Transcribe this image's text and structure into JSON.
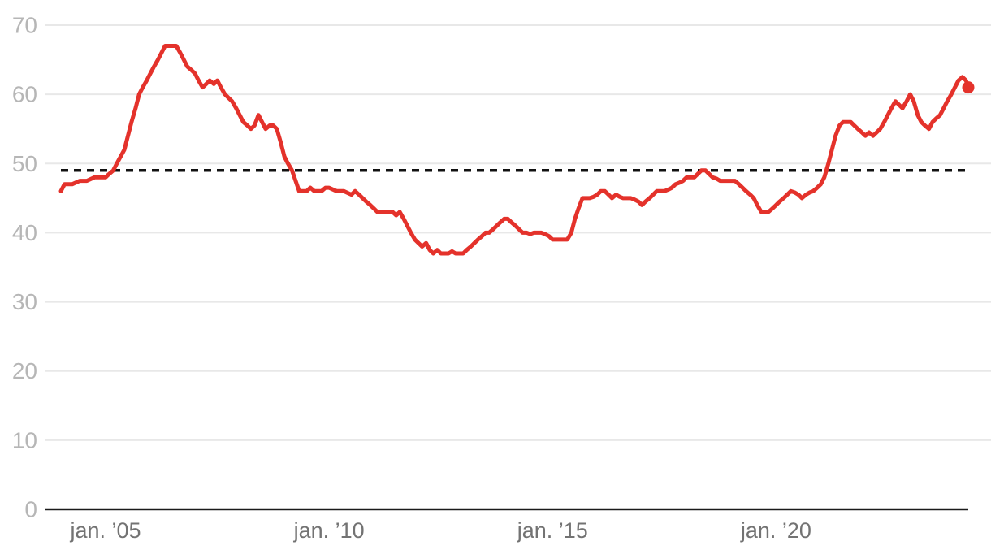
{
  "chart_data": {
    "type": "line",
    "title": "",
    "xlabel": "",
    "ylabel": "",
    "xlim": [
      2004.0,
      2024.3
    ],
    "ylim": [
      0,
      70
    ],
    "grid": "horizontal",
    "y_ticks": [
      {
        "value": 0,
        "label": "0"
      },
      {
        "value": 10,
        "label": "10"
      },
      {
        "value": 20,
        "label": "20"
      },
      {
        "value": 30,
        "label": "30"
      },
      {
        "value": 40,
        "label": "40"
      },
      {
        "value": 50,
        "label": "50"
      },
      {
        "value": 60,
        "label": "60"
      },
      {
        "value": 70,
        "label": "70"
      }
    ],
    "x_ticks": [
      {
        "value": 2005,
        "label": "jan. ’05"
      },
      {
        "value": 2010,
        "label": "jan. ’10"
      },
      {
        "value": 2015,
        "label": "jan. ’15"
      },
      {
        "value": 2020,
        "label": "jan. ’20"
      }
    ],
    "reference_line": {
      "value": 49,
      "style": "dashed",
      "color": "#111111"
    },
    "series": [
      {
        "name": "main-series",
        "color": "#e4322b",
        "end_dot": true,
        "points": [
          [
            2004.0,
            46
          ],
          [
            2004.08,
            47
          ],
          [
            2004.25,
            47
          ],
          [
            2004.42,
            47.5
          ],
          [
            2004.58,
            47.5
          ],
          [
            2004.75,
            48
          ],
          [
            2004.92,
            48
          ],
          [
            2005.0,
            48
          ],
          [
            2005.08,
            48.5
          ],
          [
            2005.17,
            49
          ],
          [
            2005.25,
            50
          ],
          [
            2005.42,
            52
          ],
          [
            2005.5,
            54
          ],
          [
            2005.58,
            56
          ],
          [
            2005.67,
            58
          ],
          [
            2005.75,
            60
          ],
          [
            2005.83,
            61
          ],
          [
            2005.92,
            62
          ],
          [
            2006.0,
            63
          ],
          [
            2006.08,
            64
          ],
          [
            2006.17,
            65
          ],
          [
            2006.25,
            66
          ],
          [
            2006.33,
            67
          ],
          [
            2006.5,
            67
          ],
          [
            2006.58,
            67
          ],
          [
            2006.67,
            66
          ],
          [
            2006.75,
            65
          ],
          [
            2006.83,
            64
          ],
          [
            2006.92,
            63.5
          ],
          [
            2007.0,
            63
          ],
          [
            2007.08,
            62
          ],
          [
            2007.17,
            61
          ],
          [
            2007.25,
            61.5
          ],
          [
            2007.33,
            62
          ],
          [
            2007.42,
            61.5
          ],
          [
            2007.5,
            62
          ],
          [
            2007.58,
            61
          ],
          [
            2007.67,
            60
          ],
          [
            2007.75,
            59.5
          ],
          [
            2007.83,
            59
          ],
          [
            2007.92,
            58
          ],
          [
            2008.0,
            57
          ],
          [
            2008.08,
            56
          ],
          [
            2008.17,
            55.5
          ],
          [
            2008.25,
            55
          ],
          [
            2008.33,
            55.5
          ],
          [
            2008.42,
            57
          ],
          [
            2008.5,
            56
          ],
          [
            2008.58,
            55
          ],
          [
            2008.67,
            55.5
          ],
          [
            2008.75,
            55.5
          ],
          [
            2008.83,
            55
          ],
          [
            2008.92,
            53
          ],
          [
            2009.0,
            51
          ],
          [
            2009.08,
            50
          ],
          [
            2009.17,
            49
          ],
          [
            2009.25,
            47.5
          ],
          [
            2009.33,
            46
          ],
          [
            2009.5,
            46
          ],
          [
            2009.58,
            46.5
          ],
          [
            2009.67,
            46
          ],
          [
            2009.83,
            46
          ],
          [
            2009.92,
            46.5
          ],
          [
            2010.0,
            46.5
          ],
          [
            2010.17,
            46
          ],
          [
            2010.33,
            46
          ],
          [
            2010.5,
            45.5
          ],
          [
            2010.58,
            46
          ],
          [
            2010.67,
            45.5
          ],
          [
            2010.75,
            45
          ],
          [
            2010.83,
            44.5
          ],
          [
            2010.92,
            44
          ],
          [
            2011.0,
            43.5
          ],
          [
            2011.08,
            43
          ],
          [
            2011.25,
            43
          ],
          [
            2011.42,
            43
          ],
          [
            2011.5,
            42.5
          ],
          [
            2011.58,
            43
          ],
          [
            2011.67,
            42
          ],
          [
            2011.75,
            41
          ],
          [
            2011.83,
            40
          ],
          [
            2011.92,
            39
          ],
          [
            2012.0,
            38.5
          ],
          [
            2012.08,
            38
          ],
          [
            2012.17,
            38.5
          ],
          [
            2012.25,
            37.5
          ],
          [
            2012.33,
            37
          ],
          [
            2012.42,
            37.5
          ],
          [
            2012.5,
            37
          ],
          [
            2012.67,
            37
          ],
          [
            2012.75,
            37.3
          ],
          [
            2012.83,
            37
          ],
          [
            2013.0,
            37
          ],
          [
            2013.08,
            37.5
          ],
          [
            2013.17,
            38
          ],
          [
            2013.25,
            38.5
          ],
          [
            2013.33,
            39
          ],
          [
            2013.42,
            39.5
          ],
          [
            2013.5,
            40
          ],
          [
            2013.58,
            40
          ],
          [
            2013.67,
            40.5
          ],
          [
            2013.75,
            41
          ],
          [
            2013.83,
            41.5
          ],
          [
            2013.92,
            42
          ],
          [
            2014.0,
            42
          ],
          [
            2014.08,
            41.5
          ],
          [
            2014.17,
            41
          ],
          [
            2014.25,
            40.5
          ],
          [
            2014.33,
            40
          ],
          [
            2014.42,
            40
          ],
          [
            2014.5,
            39.8
          ],
          [
            2014.58,
            40
          ],
          [
            2014.75,
            40
          ],
          [
            2014.83,
            39.8
          ],
          [
            2014.92,
            39.5
          ],
          [
            2015.0,
            39
          ],
          [
            2015.17,
            39
          ],
          [
            2015.33,
            39
          ],
          [
            2015.42,
            40
          ],
          [
            2015.5,
            42
          ],
          [
            2015.58,
            43.5
          ],
          [
            2015.67,
            45
          ],
          [
            2015.83,
            45
          ],
          [
            2015.92,
            45.2
          ],
          [
            2016.0,
            45.5
          ],
          [
            2016.08,
            46
          ],
          [
            2016.17,
            46
          ],
          [
            2016.25,
            45.5
          ],
          [
            2016.33,
            45
          ],
          [
            2016.42,
            45.5
          ],
          [
            2016.5,
            45.2
          ],
          [
            2016.58,
            45
          ],
          [
            2016.75,
            45
          ],
          [
            2016.83,
            44.8
          ],
          [
            2016.92,
            44.5
          ],
          [
            2017.0,
            44
          ],
          [
            2017.08,
            44.5
          ],
          [
            2017.17,
            45
          ],
          [
            2017.25,
            45.5
          ],
          [
            2017.33,
            46
          ],
          [
            2017.5,
            46
          ],
          [
            2017.58,
            46.2
          ],
          [
            2017.67,
            46.5
          ],
          [
            2017.75,
            47
          ],
          [
            2017.83,
            47.2
          ],
          [
            2017.92,
            47.5
          ],
          [
            2018.0,
            48
          ],
          [
            2018.17,
            48
          ],
          [
            2018.25,
            48.5
          ],
          [
            2018.33,
            49
          ],
          [
            2018.42,
            49
          ],
          [
            2018.5,
            48.5
          ],
          [
            2018.58,
            48
          ],
          [
            2018.67,
            47.8
          ],
          [
            2018.75,
            47.5
          ],
          [
            2018.92,
            47.5
          ],
          [
            2019.0,
            47.5
          ],
          [
            2019.08,
            47.5
          ],
          [
            2019.17,
            47
          ],
          [
            2019.25,
            46.5
          ],
          [
            2019.33,
            46
          ],
          [
            2019.42,
            45.5
          ],
          [
            2019.5,
            45
          ],
          [
            2019.58,
            44
          ],
          [
            2019.67,
            43
          ],
          [
            2019.75,
            43
          ],
          [
            2019.83,
            43
          ],
          [
            2019.92,
            43.5
          ],
          [
            2020.0,
            44
          ],
          [
            2020.08,
            44.5
          ],
          [
            2020.17,
            45
          ],
          [
            2020.25,
            45.5
          ],
          [
            2020.33,
            46
          ],
          [
            2020.42,
            45.8
          ],
          [
            2020.5,
            45.5
          ],
          [
            2020.58,
            45
          ],
          [
            2020.67,
            45.5
          ],
          [
            2020.75,
            45.8
          ],
          [
            2020.83,
            46
          ],
          [
            2020.92,
            46.5
          ],
          [
            2021.0,
            47
          ],
          [
            2021.08,
            48
          ],
          [
            2021.17,
            50
          ],
          [
            2021.25,
            52
          ],
          [
            2021.33,
            54
          ],
          [
            2021.42,
            55.5
          ],
          [
            2021.5,
            56
          ],
          [
            2021.58,
            56
          ],
          [
            2021.67,
            56
          ],
          [
            2021.75,
            55.5
          ],
          [
            2021.83,
            55
          ],
          [
            2021.92,
            54.5
          ],
          [
            2022.0,
            54
          ],
          [
            2022.08,
            54.5
          ],
          [
            2022.17,
            54
          ],
          [
            2022.25,
            54.5
          ],
          [
            2022.33,
            55
          ],
          [
            2022.42,
            56
          ],
          [
            2022.5,
            57
          ],
          [
            2022.58,
            58
          ],
          [
            2022.67,
            59
          ],
          [
            2022.75,
            58.5
          ],
          [
            2022.83,
            58
          ],
          [
            2022.92,
            59
          ],
          [
            2023.0,
            60
          ],
          [
            2023.08,
            59
          ],
          [
            2023.17,
            57
          ],
          [
            2023.25,
            56
          ],
          [
            2023.33,
            55.5
          ],
          [
            2023.42,
            55
          ],
          [
            2023.5,
            56
          ],
          [
            2023.58,
            56.5
          ],
          [
            2023.67,
            57
          ],
          [
            2023.75,
            58
          ],
          [
            2023.83,
            59
          ],
          [
            2023.92,
            60
          ],
          [
            2024.0,
            61
          ],
          [
            2024.08,
            62
          ],
          [
            2024.17,
            62.5
          ],
          [
            2024.25,
            62
          ],
          [
            2024.3,
            61
          ]
        ]
      }
    ]
  },
  "colors": {
    "background": "#ffffff",
    "series_red": "#e4322b",
    "reference_black": "#111111",
    "gridline": "#e8e8e8",
    "axis_line": "#1a1a1a",
    "y_label": "#b6b6b6",
    "x_label": "#737373"
  }
}
